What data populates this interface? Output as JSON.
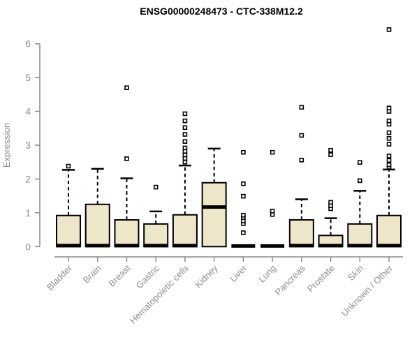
{
  "chart_data": {
    "type": "boxplot",
    "title": "ENSG00000248473 - CTC-338M12.2",
    "xlabel": "",
    "ylabel": "Expression",
    "ylim": [
      0,
      6.5
    ],
    "yticks": [
      0,
      1,
      2,
      3,
      4,
      5,
      6
    ],
    "grid": false,
    "legend": "none",
    "colors": {
      "box_fill": "#EDE6C8",
      "box_stroke": "#000000",
      "median_stroke": "#000000",
      "whisker_stroke": "#000000",
      "outlier_stroke": "#000000",
      "outlier_fill": "#ffffff",
      "axis_stroke": "#8a8a8a",
      "axis_text": "#8e8e8e",
      "title_color": "#000000",
      "background": "#ffffff"
    },
    "categories": [
      "Bladder",
      "Brain",
      "Breast",
      "Gastric",
      "Hematopoietic cells",
      "Kidney",
      "Liver",
      "Lung",
      "Pancreas",
      "Prostate",
      "Skin",
      "Unknown / Other"
    ],
    "boxes": [
      {
        "category": "Bladder",
        "q1": 0,
        "median": 0.03,
        "q3": 0.92,
        "whisker_low": 0,
        "whisker_high": 2.27,
        "outliers": [
          2.38
        ]
      },
      {
        "category": "Brain",
        "q1": 0,
        "median": 0.03,
        "q3": 1.25,
        "whisker_low": 0,
        "whisker_high": 2.3,
        "outliers": []
      },
      {
        "category": "Breast",
        "q1": 0,
        "median": 0.03,
        "q3": 0.79,
        "whisker_low": 0,
        "whisker_high": 2.02,
        "outliers": [
          2.6,
          4.7
        ]
      },
      {
        "category": "Gastric",
        "q1": 0,
        "median": 0.03,
        "q3": 0.67,
        "whisker_low": 0,
        "whisker_high": 1.04,
        "outliers": [
          1.76
        ]
      },
      {
        "category": "Hematopoietic cells",
        "q1": 0,
        "median": 0.03,
        "q3": 0.94,
        "whisker_low": 0,
        "whisker_high": 2.4,
        "outliers": [
          2.5,
          2.61,
          2.71,
          2.82,
          2.92,
          3.11,
          3.32,
          3.52,
          3.72,
          3.93
        ]
      },
      {
        "category": "Kidney",
        "q1": 0,
        "median": 1.17,
        "q3": 1.89,
        "whisker_low": 0,
        "whisker_high": 2.9,
        "outliers": []
      },
      {
        "category": "Liver",
        "q1": 0,
        "median": 0.02,
        "q3": 0.02,
        "whisker_low": 0,
        "whisker_high": 0.02,
        "outliers": [
          0.41,
          0.68,
          0.76,
          0.86,
          0.93,
          1.49,
          1.86,
          2.79
        ]
      },
      {
        "category": "Lung",
        "q1": 0,
        "median": 0.02,
        "q3": 0.02,
        "whisker_low": 0,
        "whisker_high": 0.02,
        "outliers": [
          0.95,
          1.05,
          2.79
        ]
      },
      {
        "category": "Pancreas",
        "q1": 0,
        "median": 0.03,
        "q3": 0.79,
        "whisker_low": 0,
        "whisker_high": 1.4,
        "outliers": [
          2.56,
          3.29,
          4.12
        ]
      },
      {
        "category": "Prostate",
        "q1": 0,
        "median": 0.03,
        "q3": 0.33,
        "whisker_low": 0,
        "whisker_high": 0.84,
        "outliers": [
          1.12,
          1.21,
          1.31,
          2.72,
          2.85
        ]
      },
      {
        "category": "Skin",
        "q1": 0,
        "median": 0.03,
        "q3": 0.67,
        "whisker_low": 0,
        "whisker_high": 1.65,
        "outliers": [
          1.95,
          2.49
        ]
      },
      {
        "category": "Unknown / Other",
        "q1": 0,
        "median": 0.03,
        "q3": 0.92,
        "whisker_low": 0,
        "whisker_high": 2.28,
        "outliers": [
          2.35,
          2.42,
          2.55,
          2.68,
          3.03,
          3.2,
          3.37,
          3.62,
          3.72,
          4.0,
          4.1,
          6.42
        ]
      }
    ]
  }
}
